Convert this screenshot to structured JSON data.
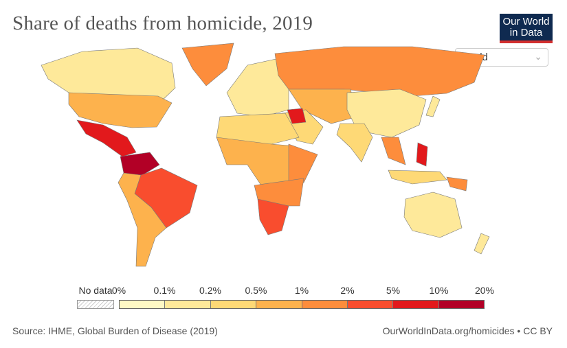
{
  "title": "Share of deaths from homicide, 2019",
  "logo": {
    "line1": "Our World",
    "line2": "in Data"
  },
  "region_select": {
    "value": "World",
    "icon": "chevron-down-icon"
  },
  "legend": {
    "no_data_label": "No data",
    "ticks": [
      "0%",
      "0.1%",
      "0.2%",
      "0.5%",
      "1%",
      "2%",
      "5%",
      "10%",
      "20%"
    ],
    "colors": [
      "#fef9c5",
      "#fee99a",
      "#fed976",
      "#fdb24d",
      "#fd8d3c",
      "#f94d2e",
      "#e2191c",
      "#b20026"
    ]
  },
  "map_bins": {
    "canada": 1,
    "greenland": 4,
    "usa": 3,
    "mexico_central_america": 6,
    "colombia_venezuela": 7,
    "brazil": 5,
    "south_america_rest": 3,
    "europe": 1,
    "russia": 4,
    "central_asia": 3,
    "middle_east": 2,
    "iraq_syria": 6,
    "china": 1,
    "india": 2,
    "southeast_asia": 4,
    "philippines": 6,
    "indonesia": 2,
    "north_africa": 2,
    "west_central_africa": 3,
    "east_africa": 4,
    "southern_africa": 4,
    "south_africa": 5,
    "australia": 1,
    "japan": 1,
    "papua_new_guinea": 4,
    "new_zealand": 1
  },
  "footer": {
    "source": "Source: IHME, Global Burden of Disease (2019)",
    "credit": "OurWorldInData.org/homicides • CC BY"
  }
}
